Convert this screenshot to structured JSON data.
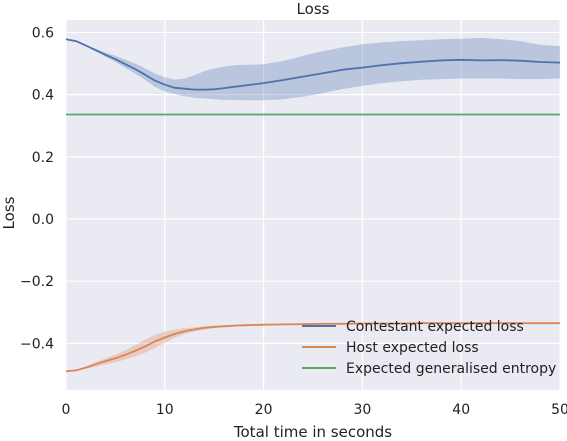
{
  "chart_data": {
    "type": "line",
    "title": "Loss",
    "xlabel": "Total time in seconds",
    "ylabel": "Loss",
    "xlim": [
      0,
      50
    ],
    "ylim": [
      -0.55,
      0.64
    ],
    "grid": true,
    "legend_position": "lower-right",
    "x_ticks": [
      {
        "v": 0,
        "label": "0"
      },
      {
        "v": 10,
        "label": "10"
      },
      {
        "v": 20,
        "label": "20"
      },
      {
        "v": 30,
        "label": "30"
      },
      {
        "v": 40,
        "label": "40"
      },
      {
        "v": 50,
        "label": "50"
      }
    ],
    "y_ticks": [
      {
        "v": 0.6,
        "label": "0.6"
      },
      {
        "v": 0.4,
        "label": "0.4"
      },
      {
        "v": 0.2,
        "label": "0.2"
      },
      {
        "v": 0.0,
        "label": "0.0"
      },
      {
        "v": -0.2,
        "label": "−0.2"
      },
      {
        "v": -0.4,
        "label": "−0.4"
      }
    ],
    "x": [
      0,
      1,
      2,
      3,
      4,
      5,
      6,
      7,
      8,
      9,
      10,
      11,
      12,
      13,
      14,
      15,
      16,
      17,
      18,
      19,
      20,
      22,
      24,
      26,
      28,
      30,
      32,
      34,
      36,
      38,
      40,
      42,
      44,
      46,
      48,
      50
    ],
    "series": [
      {
        "name": "Contestant expected loss",
        "color": "#4c72b0",
        "values": [
          0.578,
          0.572,
          0.558,
          0.543,
          0.528,
          0.514,
          0.498,
          0.482,
          0.464,
          0.445,
          0.432,
          0.422,
          0.419,
          0.416,
          0.416,
          0.417,
          0.421,
          0.425,
          0.429,
          0.433,
          0.437,
          0.447,
          0.458,
          0.469,
          0.48,
          0.487,
          0.495,
          0.501,
          0.506,
          0.51,
          0.512,
          0.51,
          0.511,
          0.509,
          0.505,
          0.503
        ],
        "lower": [
          0.578,
          0.572,
          0.555,
          0.54,
          0.522,
          0.505,
          0.486,
          0.468,
          0.447,
          0.425,
          0.41,
          0.402,
          0.395,
          0.39,
          0.388,
          0.385,
          0.383,
          0.383,
          0.382,
          0.382,
          0.382,
          0.385,
          0.393,
          0.405,
          0.418,
          0.428,
          0.437,
          0.443,
          0.448,
          0.45,
          0.452,
          0.452,
          0.452,
          0.45,
          0.45,
          0.452
        ],
        "upper": [
          0.578,
          0.572,
          0.56,
          0.548,
          0.535,
          0.525,
          0.512,
          0.5,
          0.485,
          0.468,
          0.456,
          0.448,
          0.452,
          0.462,
          0.475,
          0.484,
          0.49,
          0.494,
          0.496,
          0.496,
          0.498,
          0.508,
          0.525,
          0.54,
          0.552,
          0.562,
          0.568,
          0.572,
          0.575,
          0.578,
          0.58,
          0.582,
          0.578,
          0.572,
          0.56,
          0.556
        ]
      },
      {
        "name": "Host expected loss",
        "color": "#dd8452",
        "values": [
          -0.49,
          -0.487,
          -0.478,
          -0.467,
          -0.457,
          -0.448,
          -0.437,
          -0.424,
          -0.41,
          -0.394,
          -0.381,
          -0.37,
          -0.361,
          -0.355,
          -0.35,
          -0.347,
          -0.345,
          -0.343,
          -0.342,
          -0.341,
          -0.34,
          -0.339,
          -0.338,
          -0.337,
          -0.337,
          -0.336,
          -0.336,
          -0.336,
          -0.335,
          -0.335,
          -0.335,
          -0.335,
          -0.335,
          -0.335,
          -0.335,
          -0.335
        ],
        "lower": [
          -0.49,
          -0.488,
          -0.482,
          -0.475,
          -0.468,
          -0.461,
          -0.452,
          -0.442,
          -0.43,
          -0.415,
          -0.398,
          -0.382,
          -0.37,
          -0.362,
          -0.356,
          -0.351,
          -0.348,
          -0.346,
          -0.344,
          -0.342,
          -0.341,
          -0.34,
          -0.339,
          -0.338,
          -0.337,
          -0.336,
          -0.336,
          -0.336,
          -0.335,
          -0.335,
          -0.335,
          -0.335,
          -0.335,
          -0.335,
          -0.335,
          -0.335
        ],
        "upper": [
          -0.49,
          -0.486,
          -0.474,
          -0.461,
          -0.448,
          -0.436,
          -0.422,
          -0.405,
          -0.388,
          -0.373,
          -0.362,
          -0.356,
          -0.351,
          -0.348,
          -0.345,
          -0.343,
          -0.342,
          -0.341,
          -0.34,
          -0.339,
          -0.339,
          -0.338,
          -0.337,
          -0.337,
          -0.336,
          -0.336,
          -0.336,
          -0.335,
          -0.335,
          -0.335,
          -0.335,
          -0.335,
          -0.335,
          -0.335,
          -0.335,
          -0.335
        ]
      },
      {
        "name": "Expected generalised entropy",
        "color": "#55a868",
        "values": [
          0.336,
          0.336,
          0.336,
          0.336,
          0.336,
          0.336,
          0.336,
          0.336,
          0.336,
          0.336,
          0.336,
          0.336,
          0.336,
          0.336,
          0.336,
          0.336,
          0.336,
          0.336,
          0.336,
          0.336,
          0.336,
          0.336,
          0.336,
          0.336,
          0.336,
          0.336,
          0.336,
          0.336,
          0.336,
          0.336,
          0.336,
          0.336,
          0.336,
          0.336,
          0.336,
          0.336
        ]
      }
    ]
  }
}
